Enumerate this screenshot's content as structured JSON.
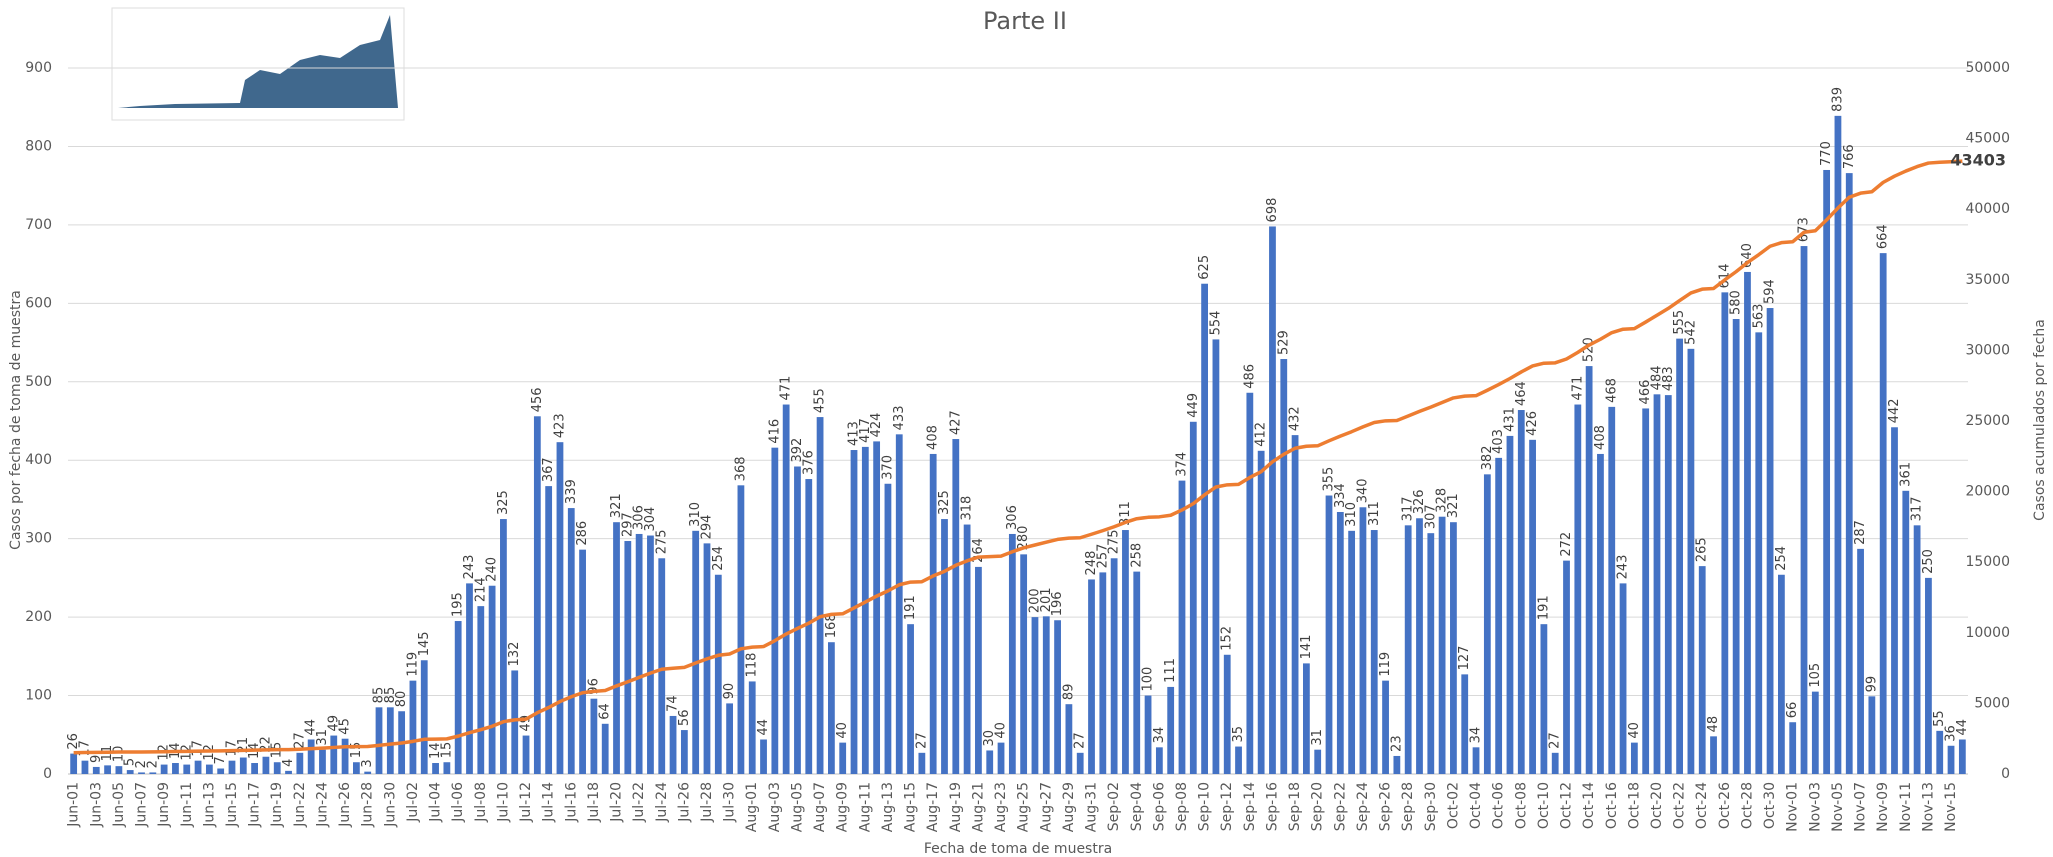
{
  "chart_data": {
    "type": "bar_line",
    "title": "Parte II",
    "ylabel": "Casos por fecha de toma de muestra",
    "y2label": "Casos acumulados por fecha",
    "xlabel": "Fecha de toma de muestra",
    "categories": [
      "Jun-01",
      null,
      "Jun-03",
      null,
      "Jun-05",
      null,
      "Jun-07",
      null,
      "Jun-09",
      null,
      "Jun-11",
      null,
      "Jun-13",
      null,
      "Jun-15",
      null,
      "Jun-17",
      null,
      "Jun-19",
      null,
      "Jun-22",
      null,
      "Jun-24",
      null,
      "Jun-26",
      null,
      "Jun-28",
      null,
      "Jun-30",
      null,
      "Jul-02",
      null,
      "Jul-04",
      null,
      "Jul-06",
      null,
      "Jul-08",
      null,
      "Jul-10",
      null,
      "Jul-12",
      null,
      "Jul-14",
      null,
      "Jul-16",
      null,
      "Jul-18",
      null,
      "Jul-20",
      null,
      "Jul-22",
      null,
      "Jul-24",
      null,
      "Jul-26",
      null,
      "Jul-28",
      null,
      "Jul-30",
      null,
      "Aug-01",
      null,
      "Aug-03",
      null,
      "Aug-05",
      null,
      "Aug-07",
      null,
      "Aug-09",
      null,
      "Aug-11",
      null,
      "Aug-13",
      null,
      "Aug-15",
      null,
      "Aug-17",
      null,
      "Aug-19",
      null,
      "Aug-21",
      null,
      "Aug-23",
      null,
      "Aug-25",
      null,
      "Aug-27",
      null,
      "Aug-29",
      null,
      "Aug-31",
      null,
      "Sep-02",
      null,
      "Sep-04",
      null,
      "Sep-06",
      null,
      "Sep-08",
      null,
      "Sep-10",
      null,
      "Sep-12",
      null,
      "Sep-14",
      null,
      "Sep-16",
      null,
      "Sep-18",
      null,
      "Sep-20",
      null,
      "Sep-22",
      null,
      "Sep-24",
      null,
      "Sep-26",
      null,
      "Sep-28",
      null,
      "Sep-30",
      null,
      "Oct-02",
      null,
      "Oct-04",
      null,
      "Oct-06",
      null,
      "Oct-08",
      null,
      "Oct-10",
      null,
      "Oct-12",
      null,
      "Oct-14",
      null,
      "Oct-16",
      null,
      "Oct-18",
      null,
      "Oct-20",
      null,
      "Oct-22",
      null,
      "Oct-24",
      null,
      "Oct-26",
      null,
      "Oct-28",
      null,
      "Oct-30",
      null,
      "Nov-01",
      null,
      "Nov-03",
      null,
      "Nov-05",
      null,
      "Nov-07",
      null,
      "Nov-09",
      null,
      "Nov-11",
      null,
      "Nov-13",
      null,
      "Nov-15",
      null
    ],
    "series": [
      {
        "name": "Casos por fecha de toma de muestra",
        "kind": "bar",
        "color": "#4472c4",
        "data_labels": "all",
        "values": [
          26,
          17,
          9,
          11,
          10,
          5,
          2,
          2,
          12,
          14,
          12,
          17,
          12,
          7,
          17,
          21,
          14,
          22,
          15,
          4,
          27,
          44,
          31,
          49,
          45,
          15,
          3,
          85,
          85,
          80,
          119,
          145,
          14,
          15,
          195,
          243,
          214,
          240,
          325,
          132,
          49,
          456,
          367,
          423,
          339,
          286,
          96,
          64,
          321,
          297,
          306,
          304,
          275,
          74,
          56,
          310,
          294,
          254,
          90,
          368,
          118,
          44,
          416,
          471,
          392,
          376,
          455,
          168,
          40,
          413,
          417,
          424,
          370,
          433,
          191,
          27,
          408,
          325,
          427,
          318,
          264,
          30,
          40,
          306,
          280,
          200,
          201,
          196,
          89,
          27,
          248,
          257,
          275,
          311,
          258,
          100,
          34,
          111,
          374,
          449,
          625,
          554,
          152,
          35,
          486,
          412,
          698,
          529,
          432,
          141,
          31,
          355,
          334,
          310,
          340,
          311,
          119,
          23,
          317,
          326,
          307,
          328,
          321,
          127,
          34,
          382,
          403,
          431,
          464,
          426,
          191,
          27,
          272,
          471,
          520,
          408,
          468,
          243,
          40,
          466,
          484,
          483,
          555,
          542,
          265,
          48,
          614,
          580,
          640,
          563,
          594,
          254,
          66,
          673,
          105,
          770,
          839,
          766,
          287,
          99,
          664,
          442,
          361,
          317,
          250,
          55,
          36,
          44
        ]
      },
      {
        "name": "Casos acumulados por fecha",
        "kind": "line",
        "axis": "y2",
        "color": "#ed7d31",
        "data_labels": "last",
        "values": [
          1507,
          1524,
          1533,
          1544,
          1554,
          1559,
          1561,
          1563,
          1575,
          1589,
          1601,
          1618,
          1630,
          1637,
          1654,
          1675,
          1689,
          1711,
          1726,
          1730,
          1757,
          1801,
          1832,
          1881,
          1926,
          1941,
          1944,
          2029,
          2114,
          2194,
          2313,
          2458,
          2472,
          2487,
          2682,
          2925,
          3139,
          3379,
          3704,
          3836,
          3885,
          4341,
          4708,
          5131,
          5470,
          5756,
          5852,
          5916,
          6237,
          6534,
          6840,
          7144,
          7419,
          7493,
          7549,
          7859,
          8153,
          8407,
          8497,
          8865,
          8983,
          9027,
          9443,
          9914,
          10306,
          10682,
          11137,
          11305,
          11345,
          11758,
          12175,
          12599,
          12969,
          13402,
          13593,
          13620,
          14028,
          14353,
          14780,
          15098,
          15362,
          15392,
          15432,
          15738,
          16018,
          16218,
          16419,
          16615,
          16704,
          16731,
          16979,
          17236,
          17511,
          17822,
          18080,
          18180,
          18214,
          18325,
          18699,
          19148,
          19773,
          20327,
          20479,
          20514,
          21000,
          21412,
          22110,
          22639,
          23071,
          23212,
          23243,
          23598,
          23932,
          24242,
          24582,
          24893,
          25012,
          25035,
          25352,
          25678,
          25985,
          26313,
          26634,
          26761,
          26795,
          27177,
          27580,
          28011,
          28475,
          28901,
          29092,
          29119,
          29391,
          29862,
          30382,
          30790,
          31258,
          31501,
          31541,
          32007,
          32491,
          32974,
          33529,
          34071,
          34336,
          34384,
          34998,
          35578,
          36218,
          36781,
          37375,
          37629,
          37695,
          38368,
          38473,
          39243,
          40082,
          40848,
          41135,
          41234,
          41898,
          42340,
          42701,
          43018,
          43268,
          43323,
          43359,
          43403
        ]
      }
    ],
    "ylim": [
      0,
      900
    ],
    "yticks": [
      0,
      100,
      200,
      300,
      400,
      500,
      600,
      700,
      800,
      900
    ],
    "y2lim": [
      0,
      50000
    ],
    "y2ticks": [
      0,
      5000,
      10000,
      15000,
      20000,
      25000,
      30000,
      35000,
      40000,
      45000,
      50000
    ],
    "grid": true
  }
}
